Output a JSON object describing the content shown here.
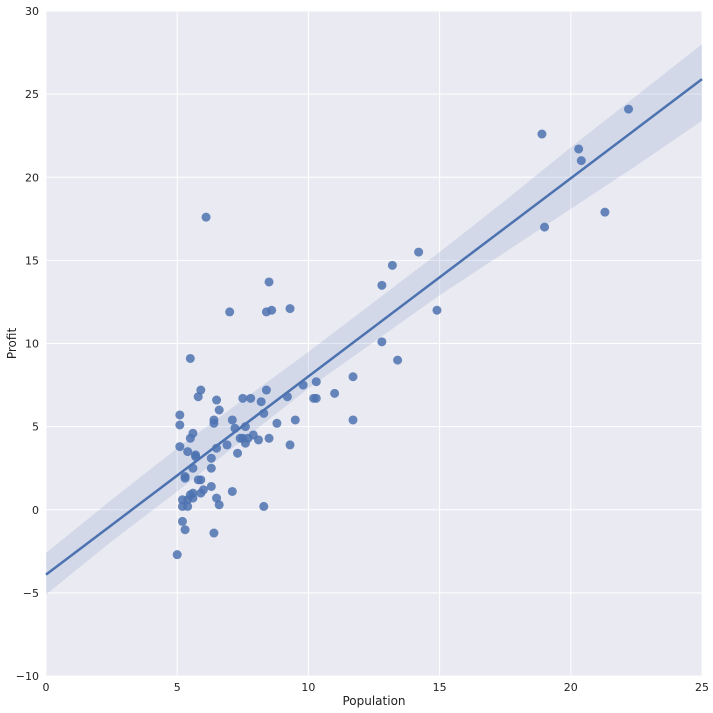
{
  "colors": {
    "plot_background": "#EAEAF2",
    "grid": "#FFFFFF",
    "points": "#4C72B0",
    "regression_line": "#4C72B0",
    "confidence_band": "#4C72B0"
  },
  "chart_data": {
    "type": "scatter",
    "title": "",
    "xlabel": "Population",
    "ylabel": "Profit",
    "xlim": [
      0,
      25
    ],
    "ylim": [
      -10,
      30
    ],
    "xticks": [
      0,
      5,
      10,
      15,
      20,
      25
    ],
    "yticks": [
      -10,
      -5,
      0,
      5,
      10,
      15,
      20,
      25,
      30
    ],
    "grid": true,
    "legend": "none",
    "regression": {
      "x": [
        0,
        25
      ],
      "y": [
        -3.9,
        25.9
      ]
    },
    "confidence_band": {
      "x": [
        0,
        2.5,
        5,
        7.5,
        10,
        12.5,
        15,
        17.5,
        20,
        22.5,
        25
      ],
      "upper": [
        -2.6,
        0.6,
        3.7,
        6.6,
        9.5,
        12.5,
        15.5,
        18.6,
        21.8,
        24.9,
        28.0
      ],
      "lower": [
        -5.1,
        -1.9,
        1.1,
        4.2,
        7.3,
        10.1,
        12.9,
        15.5,
        18.1,
        20.7,
        23.4
      ]
    },
    "points": [
      {
        "x": 6.1,
        "y": 17.6
      },
      {
        "x": 5.5,
        "y": 9.1
      },
      {
        "x": 8.5,
        "y": 13.7
      },
      {
        "x": 7.0,
        "y": 11.9
      },
      {
        "x": 5.8,
        "y": 6.8
      },
      {
        "x": 8.4,
        "y": 11.9
      },
      {
        "x": 7.5,
        "y": 4.3
      },
      {
        "x": 8.6,
        "y": 12.0
      },
      {
        "x": 6.5,
        "y": 6.6
      },
      {
        "x": 5.1,
        "y": 3.8
      },
      {
        "x": 5.7,
        "y": 3.3
      },
      {
        "x": 14.2,
        "y": 15.5
      },
      {
        "x": 5.7,
        "y": 3.2
      },
      {
        "x": 6.5,
        "y": 0.7
      },
      {
        "x": 5.9,
        "y": 1.8
      },
      {
        "x": 5.1,
        "y": 5.7
      },
      {
        "x": 5.2,
        "y": 0.6
      },
      {
        "x": 5.3,
        "y": 2.0
      },
      {
        "x": 5.9,
        "y": 1.0
      },
      {
        "x": 6.4,
        "y": 5.4
      },
      {
        "x": 5.4,
        "y": 0.6
      },
      {
        "x": 6.4,
        "y": 5.2
      },
      {
        "x": 6.3,
        "y": 3.1
      },
      {
        "x": 5.6,
        "y": 4.6
      },
      {
        "x": 7.6,
        "y": 5.0
      },
      {
        "x": 5.0,
        "y": -2.7
      },
      {
        "x": 5.4,
        "y": 3.5
      },
      {
        "x": 6.6,
        "y": 6.0
      },
      {
        "x": 5.1,
        "y": 5.1
      },
      {
        "x": 5.2,
        "y": 0.2
      },
      {
        "x": 5.5,
        "y": 0.9
      },
      {
        "x": 5.6,
        "y": 2.5
      },
      {
        "x": 5.3,
        "y": 1.9
      },
      {
        "x": 5.5,
        "y": 4.3
      },
      {
        "x": 5.6,
        "y": 1.0
      },
      {
        "x": 5.8,
        "y": 1.8
      },
      {
        "x": 6.0,
        "y": 1.2
      },
      {
        "x": 5.2,
        "y": -0.7
      },
      {
        "x": 6.3,
        "y": 2.5
      },
      {
        "x": 5.4,
        "y": 0.2
      },
      {
        "x": 6.4,
        "y": -1.4
      },
      {
        "x": 5.3,
        "y": -1.2
      },
      {
        "x": 5.6,
        "y": 0.7
      },
      {
        "x": 6.3,
        "y": 1.4
      },
      {
        "x": 6.6,
        "y": 0.3
      },
      {
        "x": 7.1,
        "y": 1.1
      },
      {
        "x": 8.3,
        "y": 0.2
      },
      {
        "x": 5.9,
        "y": 7.2
      },
      {
        "x": 6.5,
        "y": 3.7
      },
      {
        "x": 6.9,
        "y": 3.9
      },
      {
        "x": 7.1,
        "y": 5.4
      },
      {
        "x": 7.2,
        "y": 4.9
      },
      {
        "x": 7.3,
        "y": 3.4
      },
      {
        "x": 7.4,
        "y": 4.3
      },
      {
        "x": 7.5,
        "y": 6.7
      },
      {
        "x": 7.6,
        "y": 4.0
      },
      {
        "x": 7.7,
        "y": 4.3
      },
      {
        "x": 7.8,
        "y": 6.7
      },
      {
        "x": 7.9,
        "y": 4.5
      },
      {
        "x": 8.1,
        "y": 4.2
      },
      {
        "x": 8.2,
        "y": 6.5
      },
      {
        "x": 8.3,
        "y": 5.8
      },
      {
        "x": 8.4,
        "y": 7.2
      },
      {
        "x": 8.5,
        "y": 4.3
      },
      {
        "x": 8.8,
        "y": 5.2
      },
      {
        "x": 9.2,
        "y": 6.8
      },
      {
        "x": 9.3,
        "y": 12.1
      },
      {
        "x": 9.3,
        "y": 3.9
      },
      {
        "x": 9.5,
        "y": 5.4
      },
      {
        "x": 9.8,
        "y": 7.5
      },
      {
        "x": 10.2,
        "y": 6.7
      },
      {
        "x": 10.3,
        "y": 6.7
      },
      {
        "x": 10.3,
        "y": 7.7
      },
      {
        "x": 11.0,
        "y": 7.0
      },
      {
        "x": 11.7,
        "y": 8.0
      },
      {
        "x": 11.7,
        "y": 5.4
      },
      {
        "x": 12.8,
        "y": 13.5
      },
      {
        "x": 12.8,
        "y": 10.1
      },
      {
        "x": 13.2,
        "y": 14.7
      },
      {
        "x": 13.4,
        "y": 9.0
      },
      {
        "x": 14.9,
        "y": 12.0
      },
      {
        "x": 18.9,
        "y": 22.6
      },
      {
        "x": 19.0,
        "y": 17.0
      },
      {
        "x": 20.3,
        "y": 21.7
      },
      {
        "x": 20.4,
        "y": 21.0
      },
      {
        "x": 21.3,
        "y": 17.9
      },
      {
        "x": 22.2,
        "y": 24.1
      }
    ]
  }
}
